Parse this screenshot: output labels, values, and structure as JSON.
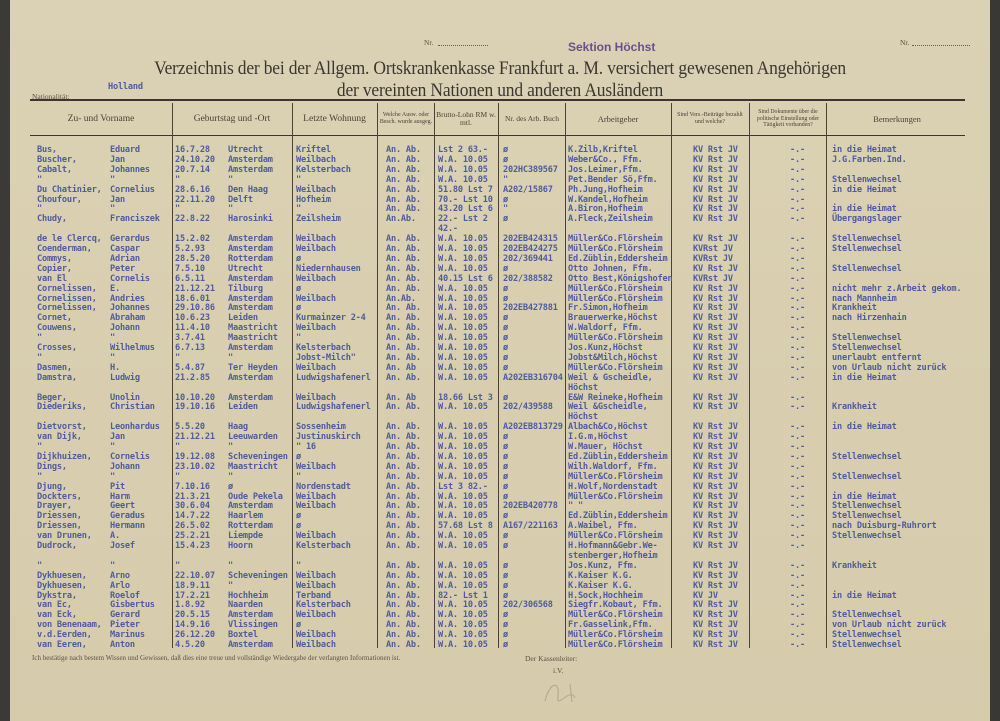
{
  "header": {
    "nr_label_1": "Nr.",
    "nr_label_2": "Nr.",
    "stamp": "Sektion Höchst",
    "title_line1": "Verzeichnis der bei der Allgem. Ortskrankenkasse Frankfurt a. M. versichert gewesenen Angehörigen",
    "title_line2": "der vereinten Nationen und anderen Ausländern",
    "nationality_label": "Nationalität:",
    "nationality_value": "Holland"
  },
  "columns": [
    "Zu- und Vorname",
    "Geburtstag und -Ort",
    "Letzte Wohnung",
    "Welche Ausw. oder Besch. wurde ausgeg.",
    "Brutto-Lohn RM w. mtl.",
    "Nr. des Arb. Buch",
    "Arbeitgeber",
    "Sind Vers.-Beiträge bezahlt und welche?",
    "Sind Dokumente über die politische Einstellung oder Tätigkeit vorhanden?",
    "Bemerkungen"
  ],
  "rows": [
    [
      "Bus,",
      "Eduard",
      "16.7.28",
      "Utrecht",
      "Kriftel",
      "An. Ab.",
      "Lst 2 63.-",
      "ø",
      "K.Zilb,Kriftel",
      "KV Rst JV",
      "-.-",
      "in die Heimat"
    ],
    [
      "Buscher,",
      "Jan",
      "24.10.20",
      "Amsterdam",
      "Weilbach",
      "An. Ab.",
      "W.A. 10.05",
      "ø",
      "Weber&Co., Ffm.",
      "KV Rst JV",
      "-.-",
      "J.G.Farben.Ind."
    ],
    [
      "Cabalt,",
      "Johannes",
      "20.7.14",
      "Amsterdam",
      "Kelsterbach",
      "An. Ab.",
      "W.A. 10.05",
      "202HC389567",
      "Jos.Leimer,Ffm.",
      "KV Rst JV",
      "-.-",
      ""
    ],
    [
      "\"",
      "\"",
      "\"",
      "\"",
      "\"",
      "An. Ab.",
      "W.A. 10.05",
      "\"",
      "Pet.Bender Sö,Ffm.",
      "KV Rst JV",
      "-.-",
      "Stellenwechsel"
    ],
    [
      "Du Chatinier,",
      "Cornelius",
      "28.6.16",
      "Den Haag",
      "Weilbach",
      "An. Ab.",
      "51.80 Lst 7",
      "A202/15867",
      "Ph.Jung,Hofheim",
      "KV Rst JV",
      "-.-",
      "in die Heimat"
    ],
    [
      "Choufour,",
      "Jan",
      "22.11.20",
      "Delft",
      "Hofheim",
      "An. Ab.",
      "70.- Lst 10",
      "ø",
      "W.Kandel,Hofheim",
      "KV Rst JV",
      "-.-",
      ""
    ],
    [
      "\"",
      "\"",
      "\"",
      "\"",
      "\"",
      "An. Ab.",
      "43.20 Lst 6",
      "\"",
      "A.Biron,Hofheim",
      "KV Rst JV",
      "-.-",
      "in die Heimat"
    ],
    [
      "Chudy,",
      "Franciszek",
      "22.8.22",
      "Harosinki",
      "Zeilsheim",
      "An.Ab.",
      "22.- Lst 2",
      "ø",
      "A.Fleck,Zeilsheim",
      "KV Rst JV",
      "-.-",
      "Übergangslager"
    ],
    [
      "",
      "",
      "",
      "",
      "",
      "",
      "42.-",
      "",
      "",
      "",
      "",
      ""
    ],
    [
      "de le Clercq,",
      "Gerardus",
      "15.2.02",
      "Amsterdam",
      "Weilbach",
      "An. Ab.",
      "W.A. 10.05",
      "202EB424315",
      "Müller&Co.Flörsheim",
      "KV Rst JV",
      "-.-",
      "Stellenwechsel"
    ],
    [
      "Coenderman,",
      "Caspar",
      "5.2.93",
      "Amsterdam",
      "Weilbach",
      "An. Ab.",
      "W.A. 10.05",
      "202EB424275",
      "Müller&Co.Flörsheim",
      "KVRst JV",
      "-.-",
      "Stellenwechsel"
    ],
    [
      "Commys,",
      "Adrian",
      "28.5.20",
      "Rotterdam",
      "ø",
      "An. Ab.",
      "W.A. 10.05",
      "202/369441",
      "Ed.Züblin,Eddersheim",
      "KVRst JV",
      "-.-",
      ""
    ],
    [
      "Copier,",
      "Peter",
      "7.5.10",
      "Utrecht",
      "Niedernhausen",
      "An. Ab.",
      "W.A. 10.05",
      "ø",
      "Otto Johnen, Ffm.",
      "KV Rst JV",
      "-.-",
      "Stellenwechsel"
    ],
    [
      "van El",
      "Cornelis",
      "6.5.11",
      "Amsterdam",
      "Weilbach",
      "An. Ab.",
      "40.15 Lst 6",
      "202/388582",
      "Otto Best,Königshofen",
      "KVRst JV",
      "-.-",
      ""
    ],
    [
      "Cornelissen,",
      "E.",
      "21.12.21",
      "Tilburg",
      "ø",
      "An. Ab.",
      "W.A. 10.05",
      "ø",
      "Müller&Co.Flörsheim",
      "KV Rst JV",
      "-.-",
      "nicht mehr z.Arbeit gekom."
    ],
    [
      "Cornelissen,",
      "Andries",
      "18.6.01",
      "Amsterdam",
      "Weilbach",
      "An.Ab.",
      "W.A. 10.05",
      "ø",
      "Müller&Co.Flörsheim",
      "KV Rst JV",
      "-.-",
      "nach Mannheim"
    ],
    [
      "Cornelissen,",
      "Johannes",
      "29.10.86",
      "Amsterdam",
      "ø",
      "An. Ab.",
      "W.A. 10.05",
      "202EB427881",
      "Fr.Simon,Hofheim",
      "KV Rst JV",
      "-.-",
      "Krankheit"
    ],
    [
      "Cornet,",
      "Abraham",
      "10.6.23",
      "Leiden",
      "Kurmainzer 2-4",
      "An. Ab.",
      "W.A. 10.05",
      "ø",
      "Brauerwerke,Höchst",
      "KV Rst JV",
      "-.-",
      "nach Hirzenhain"
    ],
    [
      "Couwens,",
      "Johann",
      "11.4.10",
      "Maastricht",
      "Weilbach",
      "An. Ab.",
      "W.A. 10.05",
      "ø",
      "W.Waldorf, Ffm.",
      "KV Rst JV",
      "-.-",
      ""
    ],
    [
      "\"",
      "\"",
      "3.7.41",
      "Maastricht",
      "\"",
      "An. Ab.",
      "W.A. 10.05",
      "ø",
      "Müller&Co.Flörsheim",
      "KV Rst JV",
      "-.-",
      "Stellenwechsel"
    ],
    [
      "Crosses,",
      "Wilhelmus",
      "6.7.13",
      "Amsterdam",
      "Kelsterbach",
      "An. Ab.",
      "W.A. 10.05",
      "ø",
      "Jos.Kunz,Höchst",
      "KV Rst JV",
      "-.-",
      "Stellenwechsel"
    ],
    [
      "\"",
      "\"",
      "\"",
      "\"",
      "Jobst-Milch\"",
      "An. Ab.",
      "W.A. 10.05",
      "ø",
      "Jobst&Milch,Höchst",
      "KV Rst JV",
      "-.-",
      "unerlaubt entfernt"
    ],
    [
      "Dasmen,",
      "H.",
      "5.4.87",
      "Ter Heyden",
      "Weilbach",
      "An. Ab",
      "W.A. 10.05",
      "ø",
      "Müller&Co.Flörsheim",
      "KV Rst JV",
      "-.-",
      "von Urlaub nicht zurück"
    ],
    [
      "Damstra,",
      "Ludwig",
      "21.2.85",
      "Amsterdam",
      "Ludwigshafenerl",
      "An. Ab.",
      "W.A. 10.05",
      "A202EB316704",
      "Weil & Gscheidle,",
      "KV Rst JV",
      "-.-",
      "in die Heimat"
    ],
    [
      "",
      "",
      "",
      "",
      "",
      "",
      "",
      "",
      "   Höchst",
      "",
      "",
      ""
    ],
    [
      "Beger,",
      "Unolin",
      "10.10.20",
      "Amsterdam",
      "Weilbach",
      "An. Ab",
      "18.66 Lst 3",
      "ø",
      "E&W Reineke,Hofheim",
      "KV Rst JV",
      "-.-",
      ""
    ],
    [
      "Diederiks,",
      "Christian",
      "19.10.16",
      "Leiden",
      "Ludwigshafenerl",
      "An. Ab.",
      "W.A. 10.05",
      "202/439588",
      "Weil &Gscheidle,",
      "KV Rst JV",
      "-.-",
      "Krankheit"
    ],
    [
      "",
      "",
      "",
      "",
      "",
      "",
      "",
      "",
      "   Höchst",
      "",
      "",
      ""
    ],
    [
      "Dietvorst,",
      "Leonhardus",
      "5.5.20",
      "Haag",
      "Sossenheim",
      "An. Ab.",
      "W.A. 10.05",
      "A202EB813729",
      "Albach&Co,Höchst",
      "KV Rst JV",
      "-.-",
      "in die Heimat"
    ],
    [
      "van Dijk,",
      "Jan",
      "21.12.21",
      "Leeuwarden",
      "Justinuskirch",
      "An. Ab.",
      "W.A. 10.05",
      "ø",
      "I.G.m,Höchst",
      "KV Rst JV",
      "-.-",
      ""
    ],
    [
      "\"",
      "\"",
      "\"",
      "\"",
      "\" 16",
      "An. Ab.",
      "W.A. 10.05",
      "ø",
      "W.Mauer, Höchst",
      "KV Rst JV",
      "-.-",
      ""
    ],
    [
      "Dijkhuizen,",
      "Cornelis",
      "19.12.08",
      "Scheveningen",
      "ø",
      "An. Ab.",
      "W.A. 10.05",
      "ø",
      "Ed.Züblin,Eddersheim",
      "KV Rst JV",
      "-.-",
      "Stellenwechsel"
    ],
    [
      "Dings,",
      "Johann",
      "23.10.02",
      "Maastricht",
      "Weilbach",
      "An. Ab.",
      "W.A. 10.05",
      "ø",
      "Wilh.Waldorf, Ffm.",
      "KV Rst JV",
      "-.-",
      ""
    ],
    [
      "\"",
      "\"",
      "\"",
      "\"",
      "\"",
      "An. Ab.",
      "W.A. 10.05",
      "ø",
      "Müller&Co.Flörsheim",
      "KV Rst JV",
      "-.-",
      "Stellenwechsel"
    ],
    [
      "Djung,",
      "Pit",
      "7.10.16",
      "ø",
      "Nordenstadt",
      "An. Ab.",
      "Lst 3 82.-",
      "ø",
      "H.Wolf,Nordenstadt",
      "KV Rst JV",
      "-.-",
      ""
    ],
    [
      "Dockters,",
      "Harm",
      "21.3.21",
      "Oude Pekela",
      "Weilbach",
      "An. Ab.",
      "W.A. 10.05",
      "ø",
      "Müller&Co.Flörsheim",
      "KV Rst JV",
      "-.-",
      "in die Heimat"
    ],
    [
      "Drayer,",
      "Geert",
      "30.6.04",
      "Amsterdam",
      "Weilbach",
      "An. Ab.",
      "W.A. 10.05",
      "202EB420778",
      "\"        \"",
      "KV Rst JV",
      "-.-",
      "Stellenwechsel"
    ],
    [
      "Driessen,",
      "Geradus",
      "14.7.22",
      "Haarlem",
      "ø",
      "An. Ab.",
      "W.A. 10.05",
      "ø",
      "Ed.Züblin,Eddersheim",
      "KV Rst JV",
      "-.-",
      "Stellenwechsel"
    ],
    [
      "Driessen,",
      "Hermann",
      "26.5.02",
      "Rotterdam",
      "ø",
      "An. Ab.",
      "57.68 Lst 8",
      "A167/221163",
      "A.Waibel, Ffm.",
      "KV Rst JV",
      "-.-",
      "nach Duisburg-Ruhrort"
    ],
    [
      "van Drunen,",
      "A.",
      "25.2.21",
      "Liempde",
      "Weilbach",
      "An. Ab.",
      "W.A. 10.05",
      "ø",
      "Müller&Co.Flörsheim",
      "KV Rst JV",
      "-.-",
      "Stellenwechsel"
    ],
    [
      "Dudrock,",
      "Josef",
      "15.4.23",
      "Hoorn",
      "Kelsterbach",
      "An. Ab.",
      "W.A. 10.05",
      "ø",
      "H.Hofmann&Gebr.We-",
      "KV Rst JV",
      "-.-",
      ""
    ],
    [
      "",
      "",
      "",
      "",
      "",
      "",
      "",
      "",
      "stenberger,Hofheim",
      "",
      "",
      ""
    ],
    [
      "\"",
      "\"",
      "\"",
      "\"",
      "\"",
      "An. Ab.",
      "W.A. 10.05",
      "ø",
      "Jos.Kunz, Ffm.",
      "KV Rst JV",
      "-.-",
      "Krankheit"
    ],
    [
      "Dykhuesen,",
      "Arno",
      "22.10.07",
      "Scheveningen",
      "Weilbach",
      "An. Ab.",
      "W.A. 10.05",
      "ø",
      "K.Kaiser K.G.",
      "KV Rst JV",
      "-.-",
      ""
    ],
    [
      "Dykhuesen,",
      "Arlo",
      "18.9.11",
      "\"",
      "Weilbach",
      "An. Ab.",
      "W.A. 10.05",
      "ø",
      "K.Kaiser K.G.",
      "KV Rst JV",
      "-.-",
      ""
    ],
    [
      "Dykstra,",
      "Roelof",
      "17.2.21",
      "Hochheim",
      "Terband",
      "An. Ab.",
      "82.- Lst 1",
      "ø",
      "H.Sock,Hochheim",
      "KV     JV",
      "-.-",
      "in die Heimat"
    ],
    [
      "van Ec,",
      "Gisbertus",
      "1.8.92",
      "Naarden",
      "Kelsterbach",
      "An. Ab.",
      "W.A. 10.05",
      "202/306568",
      "Siegfr.Kobaut, Ffm.",
      "KV Rst JV",
      "-.-",
      ""
    ],
    [
      "van Eck,",
      "Gerard",
      "20.5.15",
      "Amsterdam",
      "Weilbach",
      "An. Ab.",
      "W.A. 10.05",
      "ø",
      "Müller&Co.Flörsheim",
      "KV Rst JV",
      "-.-",
      "Stellenwechsel"
    ],
    [
      "von Benenaam,",
      "Pieter",
      "14.9.16",
      "Vlissingen",
      "ø",
      "An. Ab.",
      "W.A. 10.05",
      "ø",
      "Fr.Gasselink,Ffm.",
      "KV Rst JV",
      "-.-",
      "von Urlaub nicht zurück"
    ],
    [
      "v.d.Eerden,",
      "Marinus",
      "26.12.20",
      "Boxtel",
      "Weilbach",
      "An. Ab.",
      "W.A. 10.05",
      "ø",
      "Müller&Co.Flörsheim",
      "KV Rst JV",
      "-.-",
      "Stellenwechsel"
    ],
    [
      "van Eeren,",
      "Anton",
      "4.5.20",
      "Amsterdam",
      "Weilbach",
      "An. Ab.",
      "W.A. 10.05",
      "ø",
      "Müller&Co.Flörsheim",
      "KV Rst JV",
      "-.-",
      "Stellenwechsel"
    ]
  ],
  "footer": {
    "declaration": "Ich bestätige nach bestem Wissen und Gewissen, daß dies eine treue und vollständige Wiedergabe der verlangten Informationen ist.",
    "signatory_label": "Der Kassenleiter:",
    "on_behalf": "i.V."
  }
}
